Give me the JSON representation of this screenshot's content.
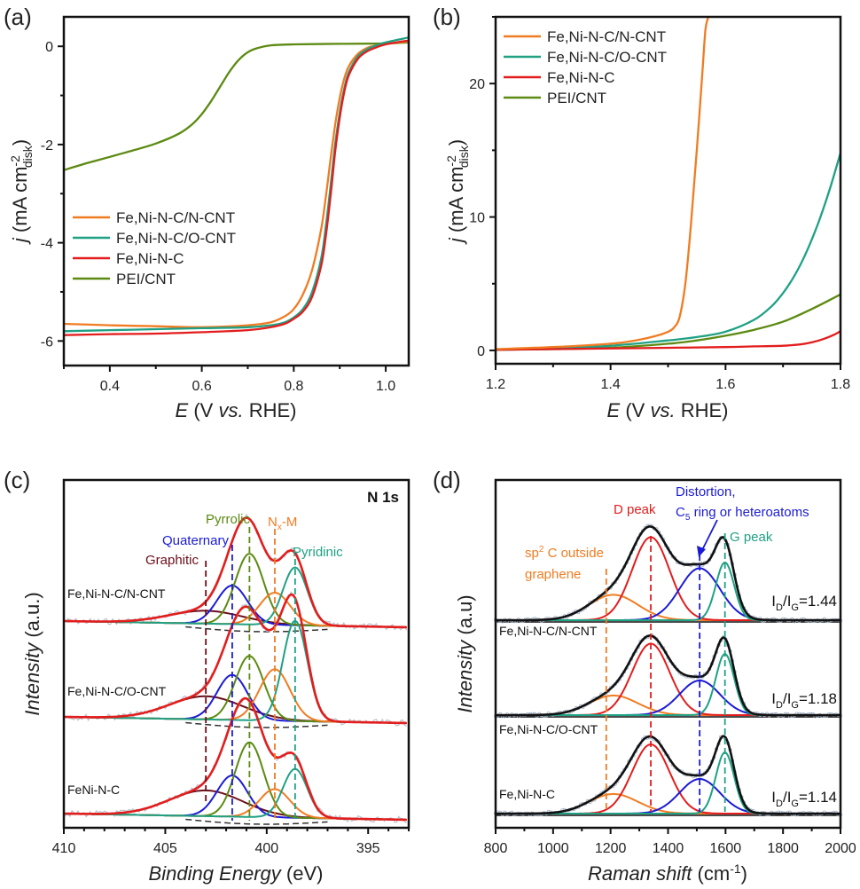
{
  "colors": {
    "orange": "#f07c22",
    "teal": "#1fa184",
    "red": "#e31d1d",
    "olive": "#5c8a12",
    "blue": "#1b1bd6",
    "maroon": "#6b0f1a",
    "black": "#111111",
    "raw": "#b9c2cc"
  },
  "chart_data": [
    {
      "id": "a",
      "panel_label": "(a)",
      "type": "line",
      "xlabel": "E (V vs. RHE)",
      "ylabel": "j (mA cm-2 disk)",
      "xlim": [
        0.3,
        1.05
      ],
      "ylim": [
        -6.5,
        0.6
      ],
      "xticks": [
        0.4,
        0.6,
        0.8,
        1.0
      ],
      "xtick_labels": [
        "0.4",
        "0.6",
        "0.8",
        "1.0"
      ],
      "yticks": [
        0,
        -2,
        -4,
        -6
      ],
      "ytick_labels": [
        "0",
        "-2",
        "-4",
        "-6"
      ],
      "legend_position": "center-left",
      "series": [
        {
          "name": "Fe,Ni-N-C/N-CNT",
          "color": "orange",
          "x": [
            0.3,
            0.4,
            0.5,
            0.6,
            0.7,
            0.75,
            0.78,
            0.8,
            0.82,
            0.84,
            0.86,
            0.87,
            0.88,
            0.89,
            0.9,
            0.91,
            0.92,
            0.94,
            0.96,
            0.98,
            1.0,
            1.05
          ],
          "y": [
            -5.65,
            -5.68,
            -5.7,
            -5.72,
            -5.68,
            -5.62,
            -5.5,
            -5.35,
            -5.05,
            -4.55,
            -3.7,
            -3.05,
            -2.3,
            -1.6,
            -1.05,
            -0.65,
            -0.4,
            -0.15,
            -0.03,
            0.02,
            0.05,
            0.1
          ]
        },
        {
          "name": "Fe,Ni-N-C/O-CNT",
          "color": "teal",
          "x": [
            0.3,
            0.4,
            0.5,
            0.6,
            0.7,
            0.75,
            0.78,
            0.8,
            0.82,
            0.84,
            0.86,
            0.87,
            0.88,
            0.89,
            0.9,
            0.91,
            0.92,
            0.94,
            0.96,
            0.98,
            1.0,
            1.05
          ],
          "y": [
            -5.8,
            -5.78,
            -5.76,
            -5.74,
            -5.72,
            -5.68,
            -5.62,
            -5.52,
            -5.35,
            -5.0,
            -4.3,
            -3.65,
            -2.85,
            -2.0,
            -1.35,
            -0.85,
            -0.52,
            -0.2,
            -0.06,
            0.02,
            0.08,
            0.18
          ]
        },
        {
          "name": "Fe,Ni-N-C",
          "color": "red",
          "x": [
            0.3,
            0.4,
            0.5,
            0.6,
            0.7,
            0.75,
            0.78,
            0.8,
            0.82,
            0.84,
            0.86,
            0.87,
            0.88,
            0.89,
            0.9,
            0.91,
            0.92,
            0.94,
            0.96,
            0.98,
            1.0,
            1.05
          ],
          "y": [
            -5.88,
            -5.86,
            -5.85,
            -5.82,
            -5.78,
            -5.72,
            -5.65,
            -5.55,
            -5.4,
            -5.1,
            -4.45,
            -3.85,
            -3.05,
            -2.15,
            -1.45,
            -0.92,
            -0.58,
            -0.25,
            -0.1,
            -0.02,
            0.04,
            0.12
          ]
        },
        {
          "name": "PEI/CNT",
          "color": "olive",
          "x": [
            0.3,
            0.35,
            0.4,
            0.45,
            0.5,
            0.55,
            0.58,
            0.6,
            0.62,
            0.64,
            0.66,
            0.68,
            0.7,
            0.72,
            0.75,
            0.8,
            0.9,
            1.0,
            1.05
          ],
          "y": [
            -2.52,
            -2.38,
            -2.25,
            -2.12,
            -1.98,
            -1.78,
            -1.58,
            -1.38,
            -1.12,
            -0.82,
            -0.52,
            -0.28,
            -0.12,
            -0.04,
            0.02,
            0.04,
            0.05,
            0.06,
            0.08
          ]
        }
      ]
    },
    {
      "id": "b",
      "panel_label": "(b)",
      "type": "line",
      "xlabel": "E (V vs. RHE)",
      "ylabel": "j (mA cm-2 disk)",
      "xlim": [
        1.2,
        1.8
      ],
      "ylim": [
        -1,
        25
      ],
      "xticks": [
        1.2,
        1.4,
        1.6,
        1.8
      ],
      "xtick_labels": [
        "1.2",
        "1.4",
        "1.6",
        "1.8"
      ],
      "yticks": [
        0,
        10,
        20
      ],
      "ytick_labels": [
        "0",
        "10",
        "20"
      ],
      "legend_position": "top-left",
      "series": [
        {
          "name": "Fe,Ni-N-C/N-CNT",
          "color": "orange",
          "x": [
            1.2,
            1.3,
            1.4,
            1.45,
            1.48,
            1.5,
            1.51,
            1.52,
            1.53,
            1.54,
            1.55,
            1.56,
            1.565,
            1.57
          ],
          "y": [
            0.1,
            0.25,
            0.5,
            0.8,
            1.1,
            1.4,
            1.7,
            2.5,
            5.0,
            9.5,
            15.0,
            21.0,
            24.0,
            25.0
          ]
        },
        {
          "name": "Fe,Ni-N-C/O-CNT",
          "color": "teal",
          "x": [
            1.2,
            1.3,
            1.4,
            1.5,
            1.55,
            1.6,
            1.65,
            1.68,
            1.7,
            1.72,
            1.74,
            1.76,
            1.78,
            1.8
          ],
          "y": [
            0.05,
            0.15,
            0.35,
            0.75,
            1.0,
            1.4,
            2.3,
            3.3,
            4.3,
            5.6,
            7.3,
            9.4,
            11.9,
            14.8
          ]
        },
        {
          "name": "Fe,Ni-N-C",
          "color": "red",
          "x": [
            1.2,
            1.3,
            1.4,
            1.5,
            1.6,
            1.65,
            1.7,
            1.73,
            1.75,
            1.77,
            1.79,
            1.8
          ],
          "y": [
            0.05,
            0.1,
            0.15,
            0.2,
            0.25,
            0.3,
            0.35,
            0.45,
            0.6,
            0.85,
            1.2,
            1.45
          ]
        },
        {
          "name": "PEI/CNT",
          "color": "olive",
          "x": [
            1.2,
            1.3,
            1.4,
            1.5,
            1.55,
            1.6,
            1.65,
            1.7,
            1.75,
            1.8
          ],
          "y": [
            0.05,
            0.1,
            0.2,
            0.5,
            0.75,
            1.1,
            1.55,
            2.15,
            3.1,
            4.2
          ]
        }
      ]
    },
    {
      "id": "c",
      "panel_label": "(c)",
      "type": "line",
      "title": "N 1s",
      "xlabel": "Binding Energy (eV)",
      "ylabel": "Intensity (a.u.)",
      "xlim": [
        410,
        393
      ],
      "xticks": [
        410,
        405,
        400,
        395
      ],
      "xtick_labels": [
        "410",
        "405",
        "400",
        "395"
      ],
      "yticks": [],
      "annotations": [
        {
          "text": "Graphitic",
          "x": 403.2,
          "color": "maroon"
        },
        {
          "text": "Quaternary",
          "x": 401.7,
          "color": "blue"
        },
        {
          "text": "Pyrrolic",
          "x": 400.9,
          "color": "olive"
        },
        {
          "text": "Nx-M",
          "x": 399.6,
          "color": "orange"
        },
        {
          "text": "Pyridinic",
          "x": 398.6,
          "color": "teal"
        }
      ],
      "components": [
        {
          "name": "Graphitic",
          "color": "maroon",
          "center": 403.0,
          "width": 1.8
        },
        {
          "name": "Quaternary",
          "color": "blue",
          "center": 401.7,
          "width": 0.75
        },
        {
          "name": "Pyrrolic",
          "color": "olive",
          "center": 400.85,
          "width": 0.7
        },
        {
          "name": "Nx-M",
          "color": "orange",
          "center": 399.6,
          "width": 0.75
        },
        {
          "name": "Pyridinic",
          "color": "teal",
          "center": 398.6,
          "width": 0.6
        }
      ],
      "samples": [
        {
          "name": "Fe,Ni-N-C/N-CNT",
          "amplitudes": [
            0.1,
            0.3,
            0.55,
            0.25,
            0.45
          ]
        },
        {
          "name": "Fe,Ni-N-C/O-CNT",
          "amplitudes": [
            0.18,
            0.35,
            0.5,
            0.4,
            0.78
          ]
        },
        {
          "name": "FeNi-N-C",
          "amplitudes": [
            0.2,
            0.32,
            0.58,
            0.22,
            0.38
          ]
        }
      ]
    },
    {
      "id": "d",
      "panel_label": "(d)",
      "type": "line",
      "xlabel": "Raman shift (cm-1)",
      "ylabel": "Intensity (a.u)",
      "xlim": [
        800,
        2000
      ],
      "xticks": [
        800,
        1000,
        1200,
        1400,
        1600,
        1800,
        2000
      ],
      "xtick_labels": [
        "800",
        "1000",
        "1200",
        "1400",
        "1600",
        "1800",
        "2000"
      ],
      "yticks": [],
      "annotations": [
        {
          "text": "sp2 C  outside graphene",
          "x": 1185,
          "color": "orange"
        },
        {
          "text": "D peak",
          "x": 1340,
          "color": "red"
        },
        {
          "text": "Distortion, C5 ring or heteroatoms",
          "x": 1510,
          "color": "blue"
        },
        {
          "text": "G peak",
          "x": 1595,
          "color": "teal"
        }
      ],
      "components": [
        {
          "name": "sp2 C outside graphene",
          "color": "orange",
          "center": 1210,
          "width": 85
        },
        {
          "name": "D peak",
          "color": "red",
          "center": 1340,
          "width": 65
        },
        {
          "name": "Distortion",
          "color": "blue",
          "center": 1510,
          "width": 70
        },
        {
          "name": "G peak",
          "color": "teal",
          "center": 1598,
          "width": 32
        }
      ],
      "samples": [
        {
          "name": "Fe,Ni-N-C/N-CNT",
          "ratio_label": "ID/IG=1.44",
          "ratio": 1.44,
          "amplitudes": [
            0.22,
            0.72,
            0.45,
            0.5
          ]
        },
        {
          "name": "Fe,Ni-N-C/O-CNT",
          "ratio_label": "ID/IG=1.18",
          "ratio": 1.18,
          "amplitudes": [
            0.17,
            0.62,
            0.3,
            0.53
          ]
        },
        {
          "name": "Fe,Ni-N-C",
          "ratio_label": "ID/IG=1.14",
          "ratio": 1.14,
          "amplitudes": [
            0.17,
            0.6,
            0.3,
            0.53
          ]
        }
      ]
    }
  ]
}
